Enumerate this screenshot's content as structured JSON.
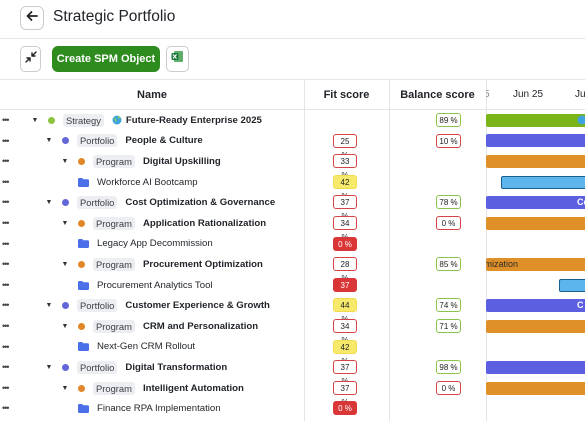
{
  "header": {
    "title": "Strategic Portfolio",
    "back_icon": "arrow-left-icon"
  },
  "toolbar": {
    "create_label": "Create SPM Object",
    "collapse_icon": "collapse-arrows-icon",
    "excel_icon": "excel-icon"
  },
  "columns": {
    "name": "Name",
    "fit": "Fit score",
    "balance": "Balance score"
  },
  "timeline": {
    "labels": [
      "Jun 25",
      "Ju"
    ],
    "partial_left": "5"
  },
  "colors": {
    "strategy_dot": "#8cc43f",
    "portfolio_dot": "#6366d6",
    "program_dot": "#e0872b",
    "project_folder": "#4b6fe8",
    "bar_strategy": "#7cb518",
    "bar_portfolio": "#5b5fe0",
    "bar_program": "#e09028",
    "bar_project": "#5cb6ec",
    "accent_green": "#2e8b1e"
  },
  "rows": [
    {
      "type": "Strategy",
      "name": "Future-Ready Enterprise 2025",
      "fit": "",
      "balance": "89 %",
      "bar_text": ""
    },
    {
      "type": "Portfolio",
      "name": "People & Culture",
      "fit": "25 %",
      "balance": "10 %",
      "bar_text": ""
    },
    {
      "type": "Program",
      "name": "Digital Upskilling",
      "fit": "33 %",
      "balance": "",
      "bar_text": ""
    },
    {
      "type": "Project",
      "name": "Workforce AI Bootcamp",
      "fit": "42 %",
      "balance": "",
      "bar_text": ""
    },
    {
      "type": "Portfolio",
      "name": "Cost Optimization & Governance",
      "fit": "37 %",
      "balance": "78 %",
      "bar_text": "Co"
    },
    {
      "type": "Program",
      "name": "Application Rationalization",
      "fit": "34 %",
      "balance": "0 %",
      "bar_text": ""
    },
    {
      "type": "Project",
      "name": "Legacy App Decommission",
      "fit": "0 %",
      "balance": "",
      "bar_text": ""
    },
    {
      "type": "Program",
      "name": "Procurement Optimization",
      "fit": "28 %",
      "balance": "85 %",
      "bar_text": "timization"
    },
    {
      "type": "Project",
      "name": "Procurement Analytics Tool",
      "fit": "37 %",
      "balance": "",
      "bar_text": ""
    },
    {
      "type": "Portfolio",
      "name": "Customer Experience & Growth",
      "fit": "44 %",
      "balance": "74 %",
      "bar_text": "C"
    },
    {
      "type": "Program",
      "name": "CRM and Personalization",
      "fit": "34 %",
      "balance": "71 %",
      "bar_text": ""
    },
    {
      "type": "Project",
      "name": "Next-Gen CRM Rollout",
      "fit": "42 %",
      "balance": "",
      "bar_text": ""
    },
    {
      "type": "Portfolio",
      "name": "Digital Transformation",
      "fit": "37 %",
      "balance": "98 %",
      "bar_text": ""
    },
    {
      "type": "Program",
      "name": "Intelligent Automation",
      "fit": "37 %",
      "balance": "0 %",
      "bar_text": ""
    },
    {
      "type": "Project",
      "name": "Finance RPA Implementation",
      "fit": "0 %",
      "balance": "",
      "bar_text": ""
    }
  ]
}
